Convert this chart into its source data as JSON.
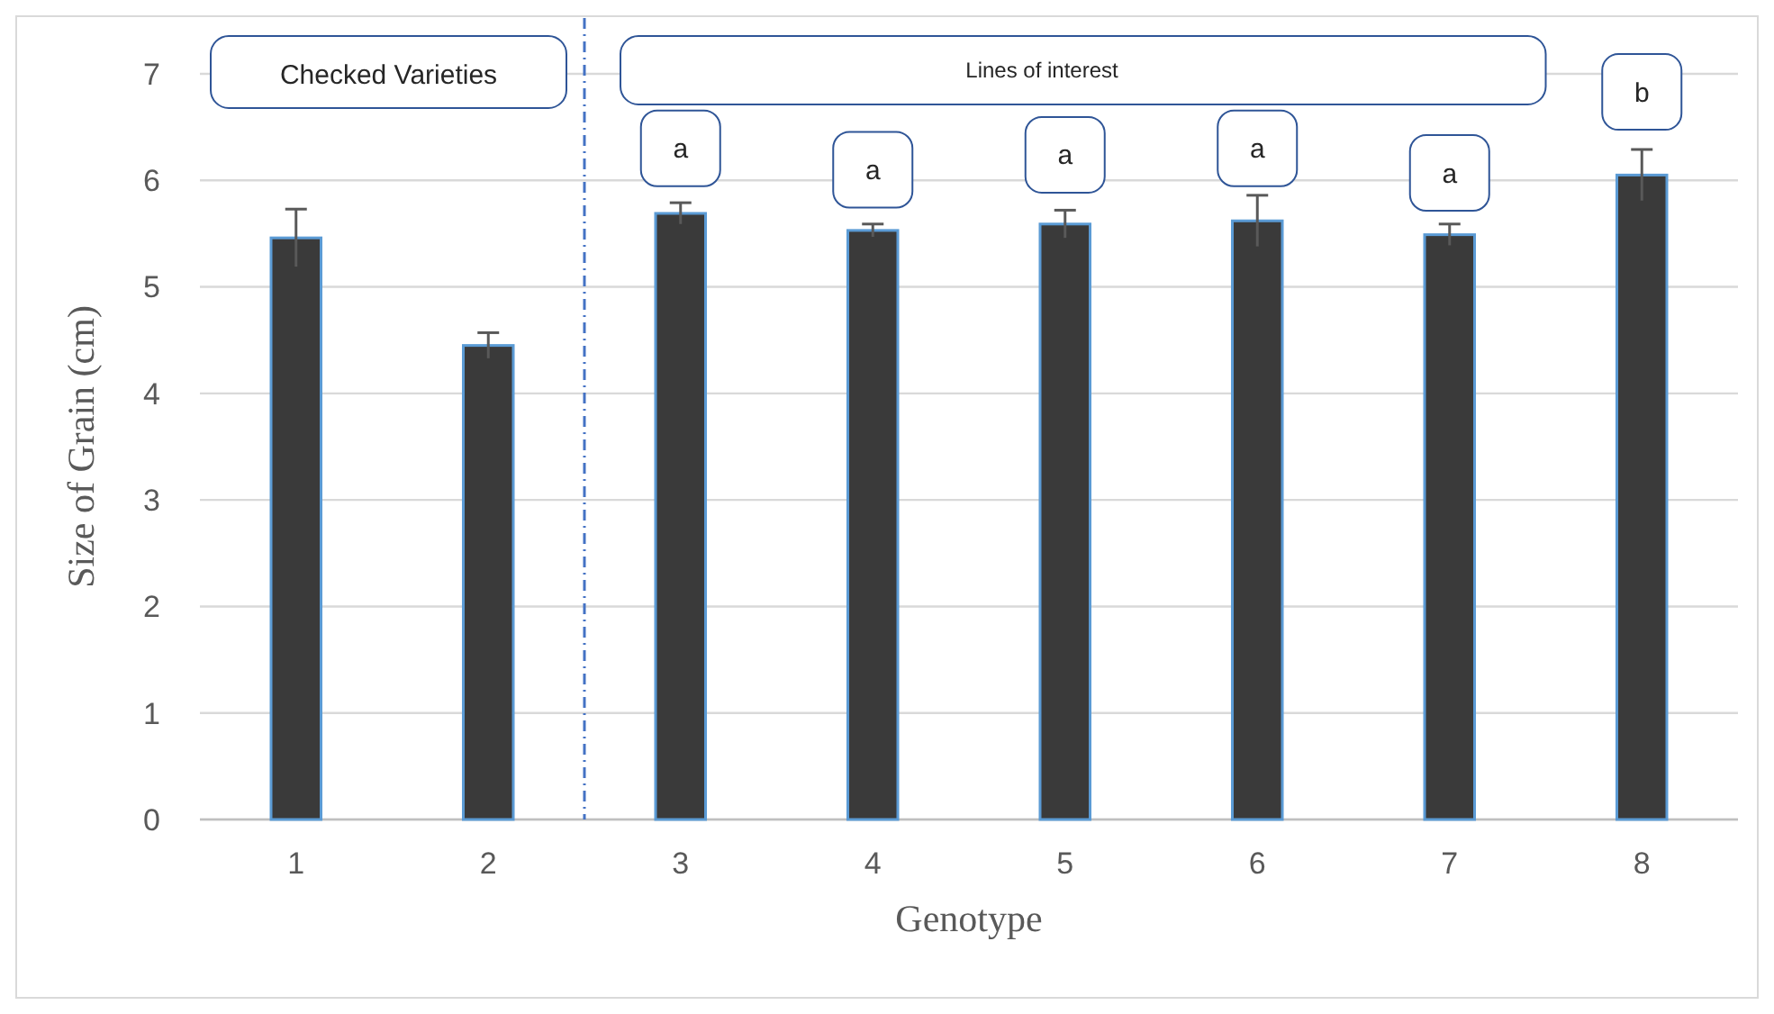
{
  "chart_data": {
    "type": "bar",
    "xlabel": "Genotype",
    "ylabel": "Size of Grain (cm)",
    "x": [
      1,
      2,
      3,
      4,
      5,
      6,
      7,
      8
    ],
    "xlim": [
      0.5,
      8.5
    ],
    "xticks": [
      1,
      2,
      3,
      4,
      5,
      6,
      7,
      8
    ],
    "values": [
      5.46,
      4.45,
      5.69,
      5.53,
      5.59,
      5.62,
      5.49,
      6.05
    ],
    "errors": [
      0.27,
      0.12,
      0.1,
      0.06,
      0.13,
      0.24,
      0.1,
      0.24
    ],
    "color": "#3a3a3a",
    "ylim": [
      0,
      7
    ],
    "yticks": [
      0,
      1,
      2,
      3,
      4,
      5,
      6,
      7
    ],
    "grid": "y",
    "ref_lines": [
      {
        "axis": "x",
        "value": 2.5,
        "color": "#4472c4",
        "line_style": "dashed"
      }
    ],
    "annotations": [
      "Checked Varieties",
      "Lines of interest",
      {
        "text": "a",
        "x": 3,
        "y": 6.3
      },
      {
        "text": "a",
        "x": 4,
        "y": 6.1
      },
      {
        "text": "a",
        "x": 5,
        "y": 6.24
      },
      {
        "text": "a",
        "x": 6,
        "y": 6.3
      },
      {
        "text": "a",
        "x": 7,
        "y": 6.07
      },
      {
        "text": "b",
        "x": 8,
        "y": 6.83
      }
    ]
  }
}
